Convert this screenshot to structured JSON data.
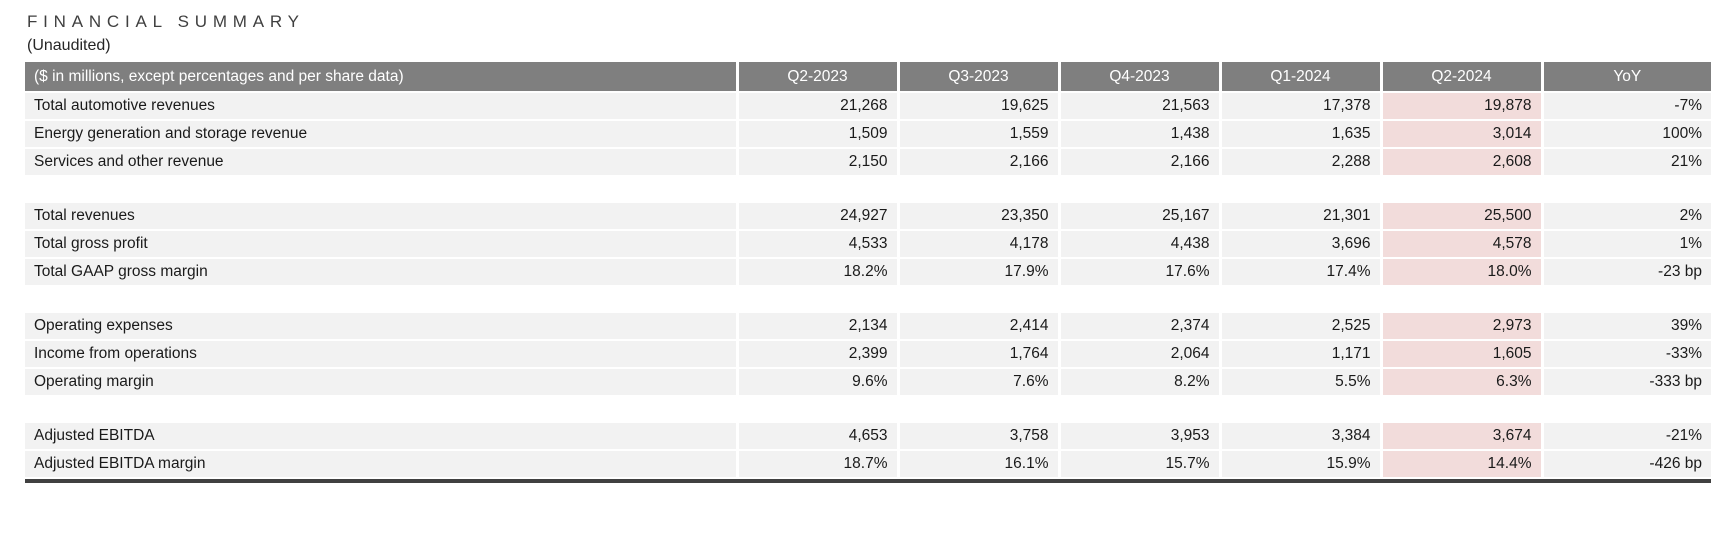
{
  "page": {
    "title": "FINANCIAL SUMMARY",
    "subtitle": "(Unaudited)"
  },
  "colors": {
    "header_bg": "#7f7f7f",
    "header_text": "#ffffff",
    "row_bg": "#f2f2f2",
    "highlight_bg": "#f2dcdb",
    "title_text": "#3f3f3f",
    "bottom_bar": "#404040"
  },
  "table": {
    "header": {
      "label": "($ in millions, except percentages and per share data)",
      "columns": [
        "Q2-2023",
        "Q3-2023",
        "Q4-2023",
        "Q1-2024",
        "Q2-2024",
        "YoY"
      ],
      "highlight_column": "Q2-2024",
      "highlight_column_index": 4
    },
    "sections": [
      {
        "rows": [
          {
            "label": "Total automotive revenues",
            "values": [
              "21,268",
              "19,625",
              "21,563",
              "17,378",
              "19,878",
              "-7%"
            ]
          },
          {
            "label": "Energy generation and storage revenue",
            "values": [
              "1,509",
              "1,559",
              "1,438",
              "1,635",
              "3,014",
              "100%"
            ]
          },
          {
            "label": "Services and other revenue",
            "values": [
              "2,150",
              "2,166",
              "2,166",
              "2,288",
              "2,608",
              "21%"
            ]
          }
        ]
      },
      {
        "rows": [
          {
            "label": "Total revenues",
            "values": [
              "24,927",
              "23,350",
              "25,167",
              "21,301",
              "25,500",
              "2%"
            ]
          },
          {
            "label": "Total gross profit",
            "values": [
              "4,533",
              "4,178",
              "4,438",
              "3,696",
              "4,578",
              "1%"
            ]
          },
          {
            "label": "Total GAAP gross margin",
            "values": [
              "18.2%",
              "17.9%",
              "17.6%",
              "17.4%",
              "18.0%",
              "-23 bp"
            ]
          }
        ]
      },
      {
        "rows": [
          {
            "label": "Operating expenses",
            "values": [
              "2,134",
              "2,414",
              "2,374",
              "2,525",
              "2,973",
              "39%"
            ]
          },
          {
            "label": "Income from operations",
            "values": [
              "2,399",
              "1,764",
              "2,064",
              "1,171",
              "1,605",
              "-33%"
            ]
          },
          {
            "label": "Operating margin",
            "values": [
              "9.6%",
              "7.6%",
              "8.2%",
              "5.5%",
              "6.3%",
              "-333 bp"
            ]
          }
        ]
      },
      {
        "rows": [
          {
            "label": "Adjusted EBITDA",
            "values": [
              "4,653",
              "3,758",
              "3,953",
              "3,384",
              "3,674",
              "-21%"
            ]
          },
          {
            "label": "Adjusted EBITDA margin",
            "values": [
              "18.7%",
              "16.1%",
              "15.7%",
              "15.9%",
              "14.4%",
              "-426 bp"
            ]
          }
        ]
      }
    ]
  }
}
